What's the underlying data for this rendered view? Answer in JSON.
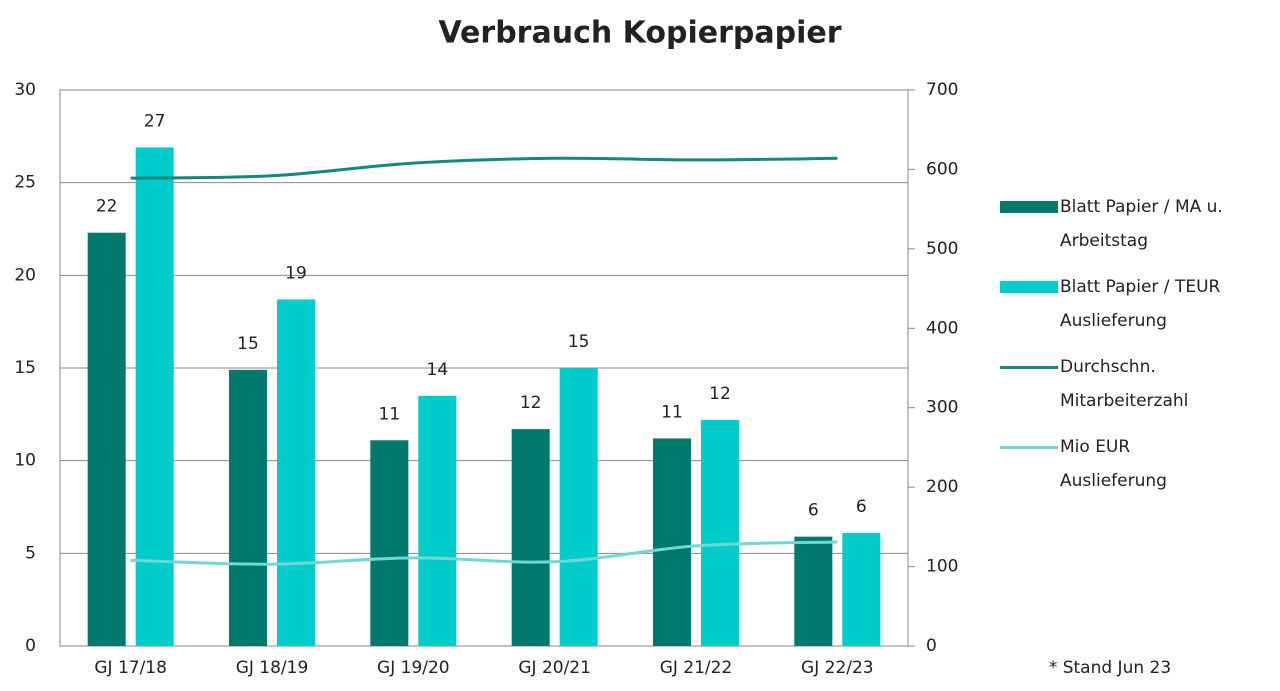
{
  "chart_data": {
    "type": "bar",
    "title": "Verbrauch Kopierpapier",
    "categories": [
      "GJ 17/18",
      "GJ 18/19",
      "GJ 19/20",
      "GJ 20/21",
      "GJ 21/22",
      "GJ 22/23"
    ],
    "series": [
      {
        "name": "Blatt Papier / MA u. Arbeitstag",
        "type": "bar",
        "color": "#00786c",
        "values": [
          22.3,
          14.9,
          11.1,
          11.7,
          11.2,
          5.9
        ],
        "value_labels": [
          "22",
          "15",
          "11",
          "12",
          "11",
          "6"
        ]
      },
      {
        "name": "Blatt Papier / TEUR Auslieferung",
        "type": "bar",
        "color": "#00cccc",
        "values": [
          26.9,
          18.7,
          13.5,
          15.0,
          12.2,
          6.1
        ],
        "value_labels": [
          "27",
          "19",
          "14",
          "15",
          "12",
          "6"
        ]
      },
      {
        "name": "Durchschn. Mitarbeiterzahl",
        "type": "line",
        "axis": "y2",
        "color": "#12897c",
        "values": [
          589,
          592,
          608,
          614,
          612,
          614
        ]
      },
      {
        "name": "Mio EUR Auslieferung",
        "type": "line",
        "axis": "y2",
        "color": "#6fd8d4",
        "values": [
          108,
          103,
          111,
          106,
          126,
          131
        ]
      }
    ],
    "ylim": [
      0,
      30
    ],
    "yticks": [
      0,
      5,
      10,
      15,
      20,
      25,
      30
    ],
    "y2lim": [
      0,
      700
    ],
    "y2ticks": [
      0,
      100,
      200,
      300,
      400,
      500,
      600,
      700
    ],
    "grid": true,
    "legend": "right",
    "annotation": "* Stand Jun 23"
  }
}
